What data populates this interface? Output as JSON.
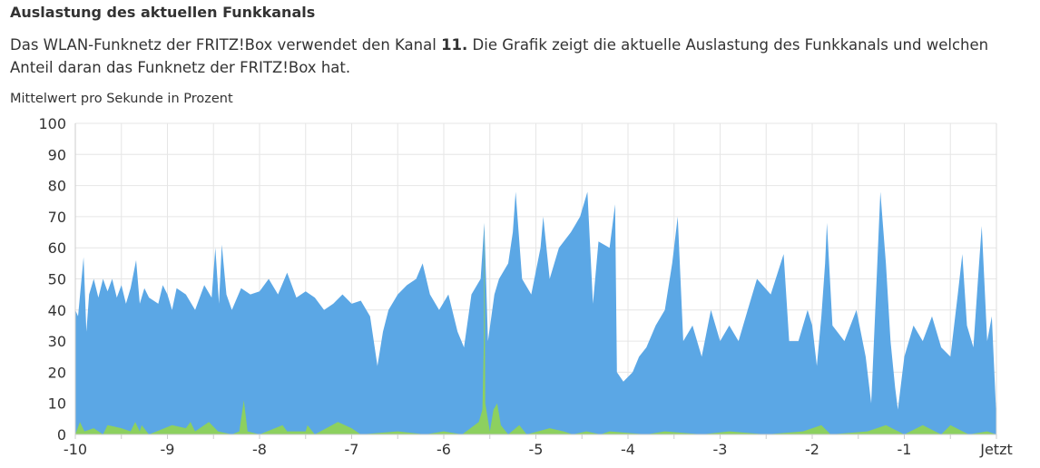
{
  "section_title": "Auslastung des aktuellen Funkkanals",
  "description": {
    "before": "Das WLAN-Funknetz der FRITZ!Box verwendet den Kanal ",
    "channel": "11.",
    "after": " Die Grafik zeigt die aktuelle Auslastung des Funkkanals und welchen Anteil daran das Funknetz der FRITZ!Box hat."
  },
  "chart_data": {
    "type": "area",
    "title": "",
    "ylabel": "Mittelwert pro Sekunde in Prozent",
    "xlabel": "",
    "xlim": [
      -10,
      0
    ],
    "ylim": [
      0,
      100
    ],
    "grid": true,
    "y_ticks": [
      "0",
      "10",
      "20",
      "30",
      "40",
      "50",
      "60",
      "70",
      "80",
      "90",
      "100"
    ],
    "x_ticks": [
      {
        "v": -10,
        "label": "-10"
      },
      {
        "v": -9,
        "label": "-9"
      },
      {
        "v": -8,
        "label": "-8"
      },
      {
        "v": -7,
        "label": "-7"
      },
      {
        "v": -6,
        "label": "-6"
      },
      {
        "v": -5,
        "label": "-5"
      },
      {
        "v": -4,
        "label": "-4"
      },
      {
        "v": -3,
        "label": "-3"
      },
      {
        "v": -2,
        "label": "-2"
      },
      {
        "v": -1,
        "label": "-1"
      },
      {
        "v": 0,
        "label": "Jetzt"
      }
    ],
    "series": [
      {
        "color": "#5ba7e5",
        "points": [
          [
            -10,
            40
          ],
          [
            -9.97,
            38
          ],
          [
            -9.91,
            57
          ],
          [
            -9.88,
            33
          ],
          [
            -9.85,
            45
          ],
          [
            -9.8,
            50
          ],
          [
            -9.75,
            44
          ],
          [
            -9.7,
            50
          ],
          [
            -9.65,
            46
          ],
          [
            -9.6,
            50
          ],
          [
            -9.55,
            44
          ],
          [
            -9.5,
            48
          ],
          [
            -9.45,
            42
          ],
          [
            -9.4,
            47
          ],
          [
            -9.34,
            56
          ],
          [
            -9.3,
            42
          ],
          [
            -9.25,
            47
          ],
          [
            -9.2,
            44
          ],
          [
            -9.1,
            42
          ],
          [
            -9.05,
            48
          ],
          [
            -9.0,
            45
          ],
          [
            -8.95,
            40
          ],
          [
            -8.9,
            47
          ],
          [
            -8.8,
            45
          ],
          [
            -8.7,
            40
          ],
          [
            -8.6,
            48
          ],
          [
            -8.52,
            44
          ],
          [
            -8.48,
            60
          ],
          [
            -8.44,
            42
          ],
          [
            -8.41,
            61
          ],
          [
            -8.36,
            45
          ],
          [
            -8.3,
            40
          ],
          [
            -8.2,
            47
          ],
          [
            -8.1,
            45
          ],
          [
            -8.0,
            46
          ],
          [
            -7.9,
            50
          ],
          [
            -7.8,
            45
          ],
          [
            -7.7,
            52
          ],
          [
            -7.6,
            44
          ],
          [
            -7.5,
            46
          ],
          [
            -7.4,
            44
          ],
          [
            -7.3,
            40
          ],
          [
            -7.2,
            42
          ],
          [
            -7.1,
            45
          ],
          [
            -7.0,
            42
          ],
          [
            -6.9,
            43
          ],
          [
            -6.8,
            38
          ],
          [
            -6.72,
            22
          ],
          [
            -6.66,
            33
          ],
          [
            -6.6,
            40
          ],
          [
            -6.5,
            45
          ],
          [
            -6.4,
            48
          ],
          [
            -6.3,
            50
          ],
          [
            -6.23,
            55
          ],
          [
            -6.15,
            45
          ],
          [
            -6.05,
            40
          ],
          [
            -5.95,
            45
          ],
          [
            -5.85,
            33
          ],
          [
            -5.78,
            28
          ],
          [
            -5.7,
            45
          ],
          [
            -5.6,
            50
          ],
          [
            -5.56,
            68
          ],
          [
            -5.52,
            30
          ],
          [
            -5.45,
            45
          ],
          [
            -5.4,
            50
          ],
          [
            -5.3,
            55
          ],
          [
            -5.25,
            65
          ],
          [
            -5.22,
            78
          ],
          [
            -5.15,
            50
          ],
          [
            -5.05,
            45
          ],
          [
            -4.95,
            60
          ],
          [
            -4.92,
            70
          ],
          [
            -4.85,
            50
          ],
          [
            -4.75,
            60
          ],
          [
            -4.62,
            65
          ],
          [
            -4.52,
            70
          ],
          [
            -4.44,
            78
          ],
          [
            -4.38,
            42
          ],
          [
            -4.32,
            62
          ],
          [
            -4.2,
            60
          ],
          [
            -4.14,
            74
          ],
          [
            -4.12,
            20
          ],
          [
            -4.05,
            17
          ],
          [
            -3.95,
            20
          ],
          [
            -3.88,
            25
          ],
          [
            -3.8,
            28
          ],
          [
            -3.7,
            35
          ],
          [
            -3.6,
            40
          ],
          [
            -3.52,
            55
          ],
          [
            -3.46,
            70
          ],
          [
            -3.4,
            30
          ],
          [
            -3.3,
            35
          ],
          [
            -3.2,
            25
          ],
          [
            -3.1,
            40
          ],
          [
            -3.0,
            30
          ],
          [
            -2.9,
            35
          ],
          [
            -2.8,
            30
          ],
          [
            -2.7,
            40
          ],
          [
            -2.6,
            50
          ],
          [
            -2.45,
            45
          ],
          [
            -2.31,
            58
          ],
          [
            -2.25,
            30
          ],
          [
            -2.15,
            30
          ],
          [
            -2.05,
            40
          ],
          [
            -2.0,
            35
          ],
          [
            -1.95,
            22
          ],
          [
            -1.9,
            38
          ],
          [
            -1.86,
            55
          ],
          [
            -1.84,
            68
          ],
          [
            -1.78,
            35
          ],
          [
            -1.65,
            30
          ],
          [
            -1.52,
            40
          ],
          [
            -1.42,
            25
          ],
          [
            -1.36,
            10
          ],
          [
            -1.3,
            50
          ],
          [
            -1.26,
            78
          ],
          [
            -1.2,
            55
          ],
          [
            -1.15,
            30
          ],
          [
            -1.1,
            15
          ],
          [
            -1.07,
            8
          ],
          [
            -1.0,
            25
          ],
          [
            -0.9,
            35
          ],
          [
            -0.8,
            30
          ],
          [
            -0.7,
            38
          ],
          [
            -0.6,
            28
          ],
          [
            -0.5,
            25
          ],
          [
            -0.42,
            45
          ],
          [
            -0.37,
            58
          ],
          [
            -0.32,
            35
          ],
          [
            -0.25,
            28
          ],
          [
            -0.2,
            50
          ],
          [
            -0.16,
            67
          ],
          [
            -0.1,
            30
          ],
          [
            -0.05,
            38
          ],
          [
            0,
            5
          ]
        ]
      },
      {
        "color": "#8dd05f",
        "points": [
          [
            -10,
            0
          ],
          [
            -9.95,
            4
          ],
          [
            -9.9,
            1
          ],
          [
            -9.8,
            2
          ],
          [
            -9.7,
            0
          ],
          [
            -9.65,
            3
          ],
          [
            -9.5,
            2
          ],
          [
            -9.4,
            1
          ],
          [
            -9.35,
            4
          ],
          [
            -9.3,
            1
          ],
          [
            -9.28,
            3
          ],
          [
            -9.2,
            0
          ],
          [
            -8.95,
            3
          ],
          [
            -8.8,
            2
          ],
          [
            -8.75,
            4
          ],
          [
            -8.7,
            1
          ],
          [
            -8.55,
            4
          ],
          [
            -8.45,
            1
          ],
          [
            -8.3,
            0
          ],
          [
            -8.22,
            1
          ],
          [
            -8.17,
            11
          ],
          [
            -8.13,
            1
          ],
          [
            -8.0,
            0
          ],
          [
            -7.75,
            3
          ],
          [
            -7.7,
            1
          ],
          [
            -7.5,
            1
          ],
          [
            -7.48,
            3
          ],
          [
            -7.4,
            0
          ],
          [
            -7.15,
            4
          ],
          [
            -7.0,
            2
          ],
          [
            -6.9,
            0
          ],
          [
            -6.5,
            1
          ],
          [
            -6.2,
            0
          ],
          [
            -6.0,
            1
          ],
          [
            -5.8,
            0
          ],
          [
            -5.62,
            4
          ],
          [
            -5.58,
            8
          ],
          [
            -5.565,
            30
          ],
          [
            -5.56,
            68
          ],
          [
            -5.55,
            10
          ],
          [
            -5.5,
            1
          ],
          [
            -5.46,
            8
          ],
          [
            -5.42,
            10
          ],
          [
            -5.38,
            3
          ],
          [
            -5.3,
            0
          ],
          [
            -5.18,
            3
          ],
          [
            -5.1,
            0
          ],
          [
            -4.85,
            2
          ],
          [
            -4.7,
            1
          ],
          [
            -4.6,
            0
          ],
          [
            -4.45,
            1
          ],
          [
            -4.3,
            0
          ],
          [
            -4.2,
            1
          ],
          [
            -3.8,
            0
          ],
          [
            -3.6,
            1
          ],
          [
            -3.2,
            0
          ],
          [
            -2.9,
            1
          ],
          [
            -2.5,
            0
          ],
          [
            -2.1,
            1
          ],
          [
            -1.9,
            3
          ],
          [
            -1.8,
            0
          ],
          [
            -1.4,
            1
          ],
          [
            -1.2,
            3
          ],
          [
            -1.0,
            0
          ],
          [
            -0.8,
            3
          ],
          [
            -0.6,
            0
          ],
          [
            -0.5,
            3
          ],
          [
            -0.3,
            0
          ],
          [
            -0.1,
            1
          ],
          [
            0,
            0
          ]
        ]
      }
    ]
  }
}
